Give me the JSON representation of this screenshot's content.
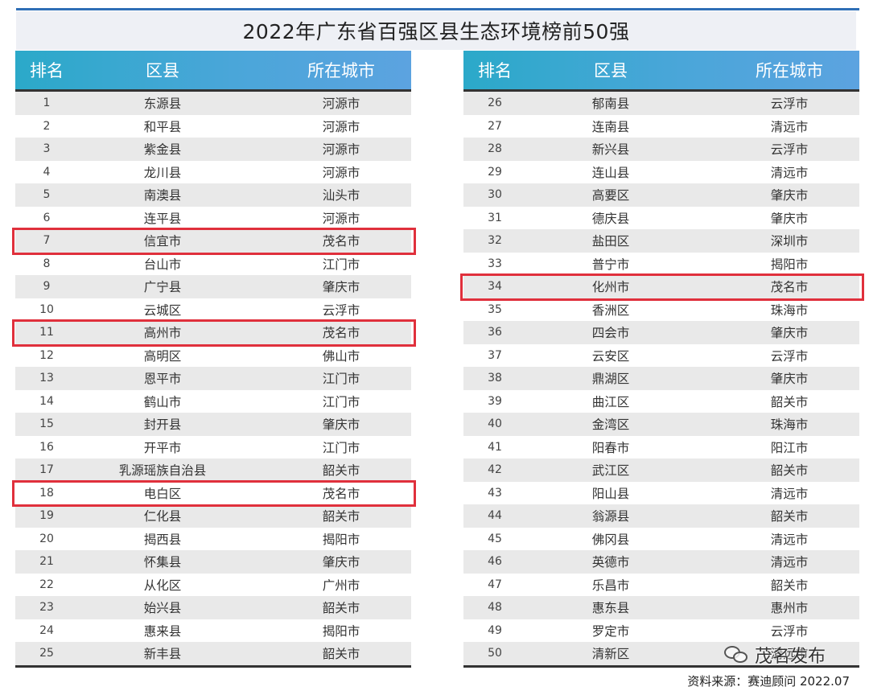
{
  "title": "2022年广东省百强区县生态环境榜前50强",
  "headers": {
    "rank": "排名",
    "county": "区县",
    "city": "所在城市"
  },
  "left_rows": [
    {
      "rank": "1",
      "county": "东源县",
      "city": "河源市"
    },
    {
      "rank": "2",
      "county": "和平县",
      "city": "河源市"
    },
    {
      "rank": "3",
      "county": "紫金县",
      "city": "河源市"
    },
    {
      "rank": "4",
      "county": "龙川县",
      "city": "河源市"
    },
    {
      "rank": "5",
      "county": "南澳县",
      "city": "汕头市"
    },
    {
      "rank": "6",
      "county": "连平县",
      "city": "河源市"
    },
    {
      "rank": "7",
      "county": "信宜市",
      "city": "茂名市"
    },
    {
      "rank": "8",
      "county": "台山市",
      "city": "江门市"
    },
    {
      "rank": "9",
      "county": "广宁县",
      "city": "肇庆市"
    },
    {
      "rank": "10",
      "county": "云城区",
      "city": "云浮市"
    },
    {
      "rank": "11",
      "county": "高州市",
      "city": "茂名市"
    },
    {
      "rank": "12",
      "county": "高明区",
      "city": "佛山市"
    },
    {
      "rank": "13",
      "county": "恩平市",
      "city": "江门市"
    },
    {
      "rank": "14",
      "county": "鹤山市",
      "city": "江门市"
    },
    {
      "rank": "15",
      "county": "封开县",
      "city": "肇庆市"
    },
    {
      "rank": "16",
      "county": "开平市",
      "city": "江门市"
    },
    {
      "rank": "17",
      "county": "乳源瑶族自治县",
      "city": "韶关市"
    },
    {
      "rank": "18",
      "county": "电白区",
      "city": "茂名市"
    },
    {
      "rank": "19",
      "county": "仁化县",
      "city": "韶关市"
    },
    {
      "rank": "20",
      "county": "揭西县",
      "city": "揭阳市"
    },
    {
      "rank": "21",
      "county": "怀集县",
      "city": "肇庆市"
    },
    {
      "rank": "22",
      "county": "从化区",
      "city": "广州市"
    },
    {
      "rank": "23",
      "county": "始兴县",
      "city": "韶关市"
    },
    {
      "rank": "24",
      "county": "惠来县",
      "city": "揭阳市"
    },
    {
      "rank": "25",
      "county": "新丰县",
      "city": "韶关市"
    }
  ],
  "right_rows": [
    {
      "rank": "26",
      "county": "郁南县",
      "city": "云浮市"
    },
    {
      "rank": "27",
      "county": "连南县",
      "city": "清远市"
    },
    {
      "rank": "28",
      "county": "新兴县",
      "city": "云浮市"
    },
    {
      "rank": "29",
      "county": "连山县",
      "city": "清远市"
    },
    {
      "rank": "30",
      "county": "高要区",
      "city": "肇庆市"
    },
    {
      "rank": "31",
      "county": "德庆县",
      "city": "肇庆市"
    },
    {
      "rank": "32",
      "county": "盐田区",
      "city": "深圳市"
    },
    {
      "rank": "33",
      "county": "普宁市",
      "city": "揭阳市"
    },
    {
      "rank": "34",
      "county": "化州市",
      "city": "茂名市"
    },
    {
      "rank": "35",
      "county": "香洲区",
      "city": "珠海市"
    },
    {
      "rank": "36",
      "county": "四会市",
      "city": "肇庆市"
    },
    {
      "rank": "37",
      "county": "云安区",
      "city": "云浮市"
    },
    {
      "rank": "38",
      "county": "鼎湖区",
      "city": "肇庆市"
    },
    {
      "rank": "39",
      "county": "曲江区",
      "city": "韶关市"
    },
    {
      "rank": "40",
      "county": "金湾区",
      "city": "珠海市"
    },
    {
      "rank": "41",
      "county": "阳春市",
      "city": "阳江市"
    },
    {
      "rank": "42",
      "county": "武江区",
      "city": "韶关市"
    },
    {
      "rank": "43",
      "county": "阳山县",
      "city": "清远市"
    },
    {
      "rank": "44",
      "county": "翁源县",
      "city": "韶关市"
    },
    {
      "rank": "45",
      "county": "佛冈县",
      "city": "清远市"
    },
    {
      "rank": "46",
      "county": "英德市",
      "city": "清远市"
    },
    {
      "rank": "47",
      "county": "乐昌市",
      "city": "韶关市"
    },
    {
      "rank": "48",
      "county": "惠东县",
      "city": "惠州市"
    },
    {
      "rank": "49",
      "county": "罗定市",
      "city": "云浮市"
    },
    {
      "rank": "50",
      "county": "清新区",
      "city": "清远市"
    }
  ],
  "highlighted_ranks": [
    "7",
    "11",
    "18",
    "34"
  ],
  "highlight_color": "#e0303c",
  "header_color": "#3aa8d4",
  "watermark": "茂名发布",
  "source": "资料来源：赛迪顾问 2022.07"
}
